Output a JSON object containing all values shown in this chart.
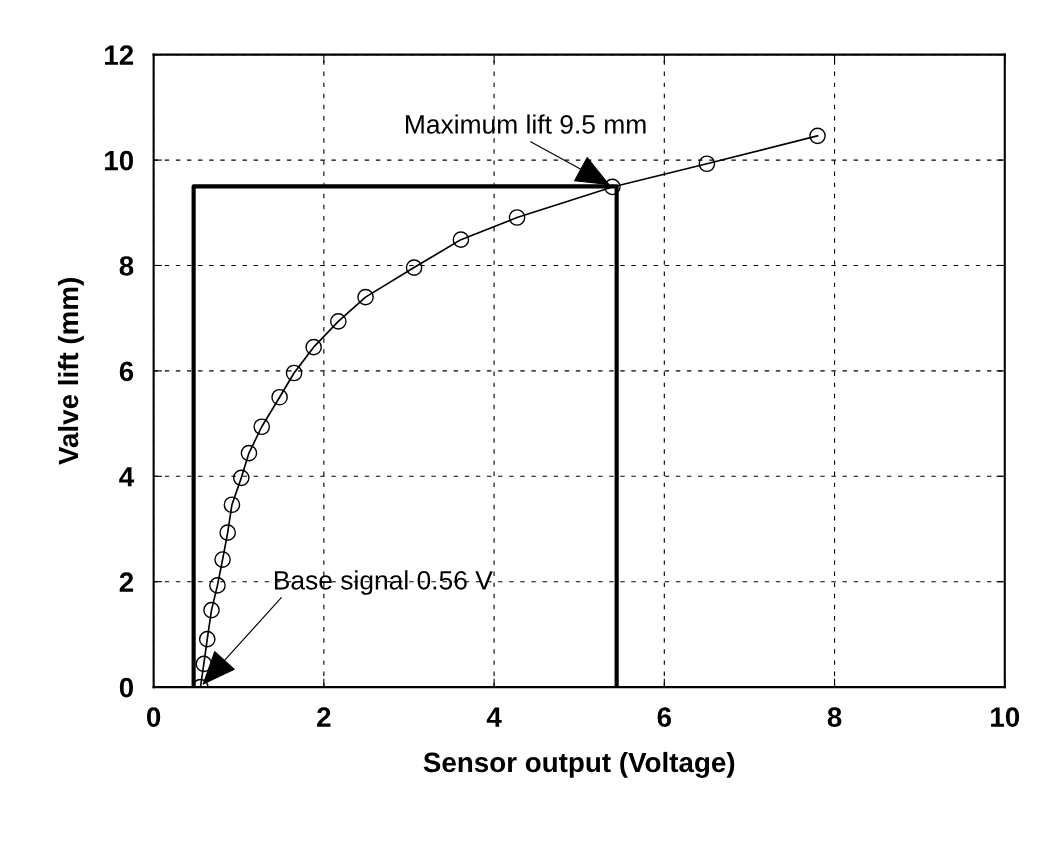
{
  "chart_data": {
    "type": "line",
    "xlabel": "Sensor output (Voltage)",
    "ylabel": "Valve lift (mm)",
    "series": [
      {
        "color": "#000000",
        "marker": "circle",
        "x": [
          0.55,
          0.59,
          0.63,
          0.68,
          0.75,
          0.81,
          0.87,
          0.92,
          1.03,
          1.12,
          1.27,
          1.48,
          1.65,
          1.88,
          2.17,
          2.49,
          3.06,
          3.61,
          4.27,
          5.39,
          6.5,
          7.8
        ],
        "values": [
          0,
          0.44,
          0.91,
          1.46,
          1.93,
          2.42,
          2.93,
          3.46,
          3.97,
          4.44,
          4.94,
          5.5,
          5.96,
          6.45,
          6.94,
          7.4,
          7.96,
          8.49,
          8.91,
          9.49,
          9.93,
          10.46
        ]
      },
      {
        "color": "#000000",
        "marker": "none",
        "x": [
          0.47,
          0.47,
          5.44,
          5.44
        ],
        "values": [
          0,
          9.5,
          9.5,
          0
        ]
      }
    ],
    "xlim": [
      0,
      10
    ],
    "ylim": [
      0,
      12
    ],
    "xticks": [
      0,
      2,
      4,
      6,
      8,
      10
    ],
    "yticks": [
      0,
      2,
      4,
      6,
      8,
      10,
      12
    ],
    "grid": true,
    "line_style": "solid",
    "annotations": [
      {
        "text": "Maximum lift 9.5 mm",
        "x": 5.39,
        "y": 9.5
      },
      {
        "text": "Base signal 0.56 V",
        "x": 0.55,
        "y": 0
      }
    ]
  }
}
